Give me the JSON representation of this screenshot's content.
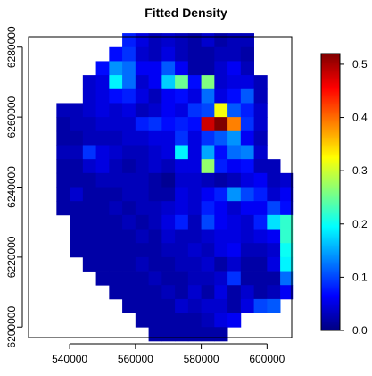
{
  "chart_data": {
    "type": "heatmap",
    "title": "Fitted Density",
    "xlabel": "",
    "ylabel": "",
    "xlim": [
      527500,
      607500
    ],
    "ylim": [
      6197000,
      6283000
    ],
    "x_ticks": [
      540000,
      560000,
      580000,
      600000
    ],
    "y_ticks": [
      6200000,
      6220000,
      6240000,
      6260000,
      6280000
    ],
    "x_tick_labels": [
      "540000",
      "560000",
      "580000",
      "600000"
    ],
    "y_tick_labels": [
      "6200000",
      "6220000",
      "6240000",
      "6260000",
      "6280000"
    ],
    "colorbar": {
      "min": 0.0,
      "max": 0.52,
      "ticks": [
        0.0,
        0.1,
        0.2,
        0.3,
        0.4,
        0.5
      ],
      "tick_labels": [
        "0.0",
        "0.1",
        "0.2",
        "0.3",
        "0.4",
        "0.5"
      ],
      "colormap": "jet"
    },
    "cell_size": [
      4000,
      4000
    ],
    "x_centers": [
      530000,
      534000,
      538000,
      542000,
      546000,
      550000,
      554000,
      558000,
      562000,
      566000,
      570000,
      574000,
      578000,
      582000,
      586000,
      590000,
      594000,
      598000,
      602000,
      606000
    ],
    "y_centers": [
      6282000,
      6278000,
      6274000,
      6270000,
      6266000,
      6262000,
      6258000,
      6254000,
      6250000,
      6246000,
      6242000,
      6238000,
      6234000,
      6230000,
      6226000,
      6222000,
      6218000,
      6214000,
      6210000,
      6206000,
      6202000,
      6198000
    ],
    "z": [
      [
        null,
        null,
        null,
        null,
        null,
        null,
        null,
        0.08,
        0.05,
        0.03,
        0.04,
        0.03,
        0.02,
        0.04,
        0.02,
        0.03,
        0.03,
        null,
        null,
        null
      ],
      [
        null,
        null,
        null,
        null,
        null,
        null,
        0.07,
        0.09,
        0.04,
        0.03,
        0.05,
        0.03,
        0.02,
        0.02,
        0.03,
        0.03,
        0.02,
        null,
        null,
        null
      ],
      [
        null,
        null,
        null,
        null,
        null,
        0.07,
        0.14,
        0.12,
        0.06,
        0.06,
        0.11,
        0.06,
        0.02,
        0.02,
        0.04,
        0.06,
        0.03,
        null,
        null,
        null
      ],
      [
        null,
        null,
        null,
        null,
        0.04,
        0.05,
        0.19,
        0.12,
        0.04,
        0.06,
        0.17,
        0.25,
        0.07,
        0.26,
        0.04,
        0.05,
        0.05,
        0.03,
        null,
        null
      ],
      [
        null,
        null,
        null,
        null,
        0.04,
        0.05,
        0.07,
        0.08,
        0.05,
        0.03,
        0.06,
        0.07,
        0.05,
        0.12,
        0.05,
        0.07,
        0.11,
        0.03,
        null,
        null
      ],
      [
        null,
        null,
        0.03,
        0.03,
        0.04,
        0.05,
        0.04,
        0.05,
        0.03,
        0.04,
        0.06,
        0.05,
        0.09,
        0.1,
        0.32,
        0.11,
        0.08,
        0.04,
        null,
        null
      ],
      [
        null,
        null,
        0.02,
        0.03,
        0.03,
        0.04,
        0.04,
        0.04,
        0.08,
        0.09,
        0.07,
        0.08,
        0.07,
        0.48,
        0.52,
        0.39,
        0.09,
        0.04,
        null,
        null
      ],
      [
        null,
        null,
        0.02,
        0.02,
        0.03,
        0.03,
        0.03,
        0.04,
        0.04,
        0.05,
        0.05,
        0.09,
        0.05,
        0.09,
        0.11,
        0.14,
        0.06,
        0.03,
        null,
        null
      ],
      [
        null,
        null,
        0.03,
        0.03,
        0.09,
        0.05,
        0.04,
        0.03,
        0.03,
        0.04,
        0.05,
        0.19,
        0.05,
        0.15,
        0.07,
        0.12,
        0.13,
        0.04,
        null,
        null
      ],
      [
        null,
        null,
        0.02,
        0.02,
        0.04,
        0.05,
        0.03,
        0.02,
        0.03,
        0.04,
        0.03,
        0.05,
        0.05,
        0.27,
        0.08,
        0.06,
        0.07,
        0.03,
        0.03,
        null
      ],
      [
        null,
        null,
        0.02,
        0.02,
        0.02,
        0.03,
        0.03,
        0.03,
        0.03,
        0.02,
        0.01,
        0.04,
        0.04,
        0.03,
        0.02,
        0.03,
        0.05,
        0.06,
        0.03,
        0.04
      ],
      [
        null,
        null,
        0.02,
        0.04,
        0.02,
        0.02,
        0.02,
        0.03,
        0.03,
        0.02,
        0.02,
        0.05,
        0.04,
        0.06,
        0.08,
        0.14,
        0.1,
        0.08,
        0.04,
        0.06
      ],
      [
        null,
        null,
        0.02,
        0.02,
        0.02,
        0.02,
        0.03,
        0.02,
        0.03,
        0.03,
        0.04,
        0.05,
        0.04,
        0.08,
        0.06,
        0.04,
        0.06,
        0.06,
        0.1,
        0.07
      ],
      [
        null,
        null,
        null,
        0.02,
        0.02,
        0.02,
        0.02,
        0.03,
        0.02,
        0.03,
        0.05,
        0.08,
        0.03,
        0.1,
        0.06,
        0.05,
        0.04,
        0.08,
        0.18,
        0.22
      ],
      [
        null,
        null,
        null,
        0.02,
        0.02,
        0.02,
        0.02,
        0.02,
        0.03,
        0.02,
        0.04,
        0.03,
        0.03,
        0.04,
        0.05,
        0.05,
        0.04,
        0.05,
        0.06,
        0.22
      ],
      [
        null,
        null,
        null,
        0.02,
        0.02,
        0.02,
        0.02,
        0.02,
        0.02,
        0.02,
        0.03,
        0.03,
        0.04,
        0.03,
        0.05,
        0.06,
        0.03,
        0.03,
        0.04,
        0.2
      ],
      [
        null,
        null,
        null,
        null,
        0.02,
        0.02,
        0.02,
        0.02,
        0.03,
        0.02,
        0.02,
        0.03,
        0.03,
        0.04,
        0.02,
        0.04,
        0.02,
        0.02,
        0.05,
        0.19
      ],
      [
        null,
        null,
        null,
        null,
        null,
        0.02,
        0.02,
        0.02,
        0.02,
        0.03,
        0.02,
        0.02,
        0.03,
        0.03,
        0.04,
        0.09,
        0.02,
        0.02,
        0.02,
        0.12
      ],
      [
        null,
        null,
        null,
        null,
        null,
        null,
        0.02,
        0.02,
        0.02,
        0.02,
        0.03,
        0.02,
        0.04,
        0.02,
        0.05,
        0.02,
        0.04,
        0.02,
        0.03,
        0.06
      ],
      [
        null,
        null,
        null,
        null,
        null,
        null,
        null,
        0.02,
        0.02,
        0.02,
        0.02,
        0.04,
        0.03,
        0.04,
        0.04,
        0.02,
        0.05,
        0.1,
        0.11,
        null
      ],
      [
        null,
        null,
        null,
        null,
        null,
        null,
        null,
        null,
        0.02,
        0.02,
        0.02,
        0.02,
        0.02,
        0.03,
        0.05,
        0.06,
        null,
        null,
        null,
        null
      ],
      [
        null,
        null,
        null,
        null,
        null,
        null,
        null,
        null,
        null,
        0.02,
        0.02,
        0.02,
        0.02,
        0.02,
        0.02,
        null,
        null,
        null,
        null,
        null
      ]
    ]
  }
}
